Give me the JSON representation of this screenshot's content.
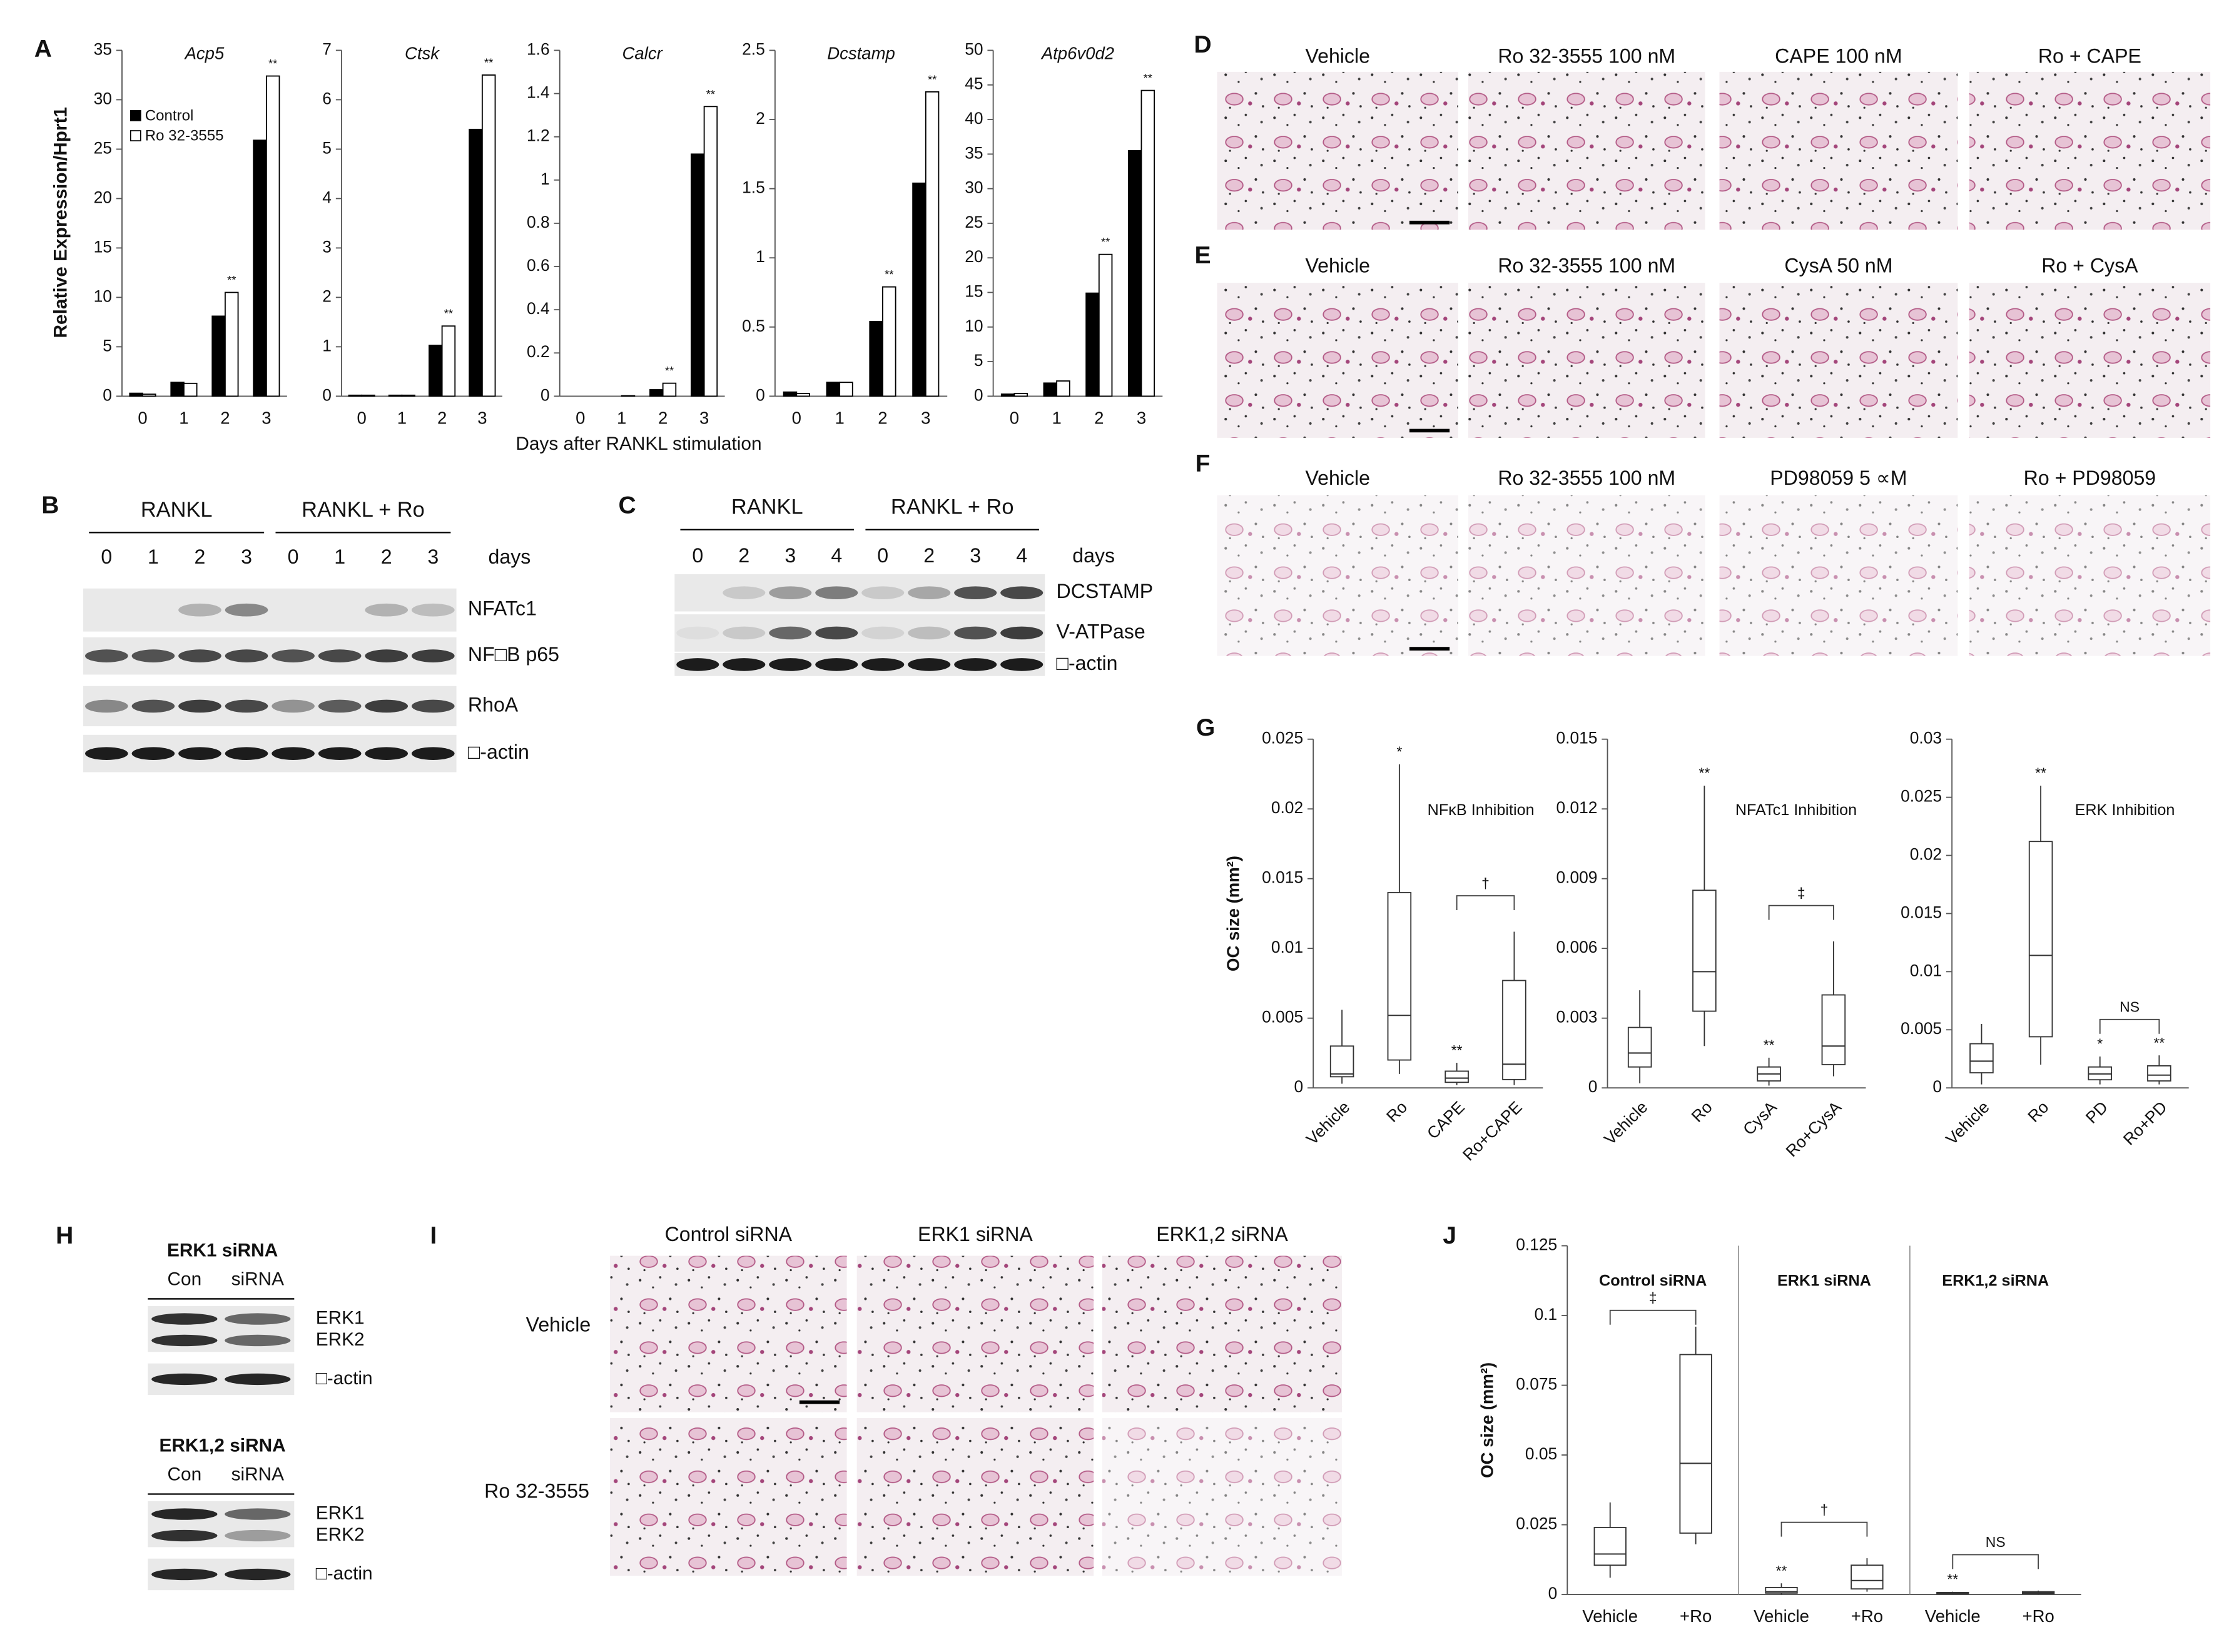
{
  "chart_data": [
    {
      "type": "bar",
      "title": "Acp5",
      "categories": [
        "0",
        "1",
        "2",
        "3"
      ],
      "series": [
        {
          "name": "Control",
          "color": "#000000",
          "values": [
            0.3,
            1.4,
            8.1,
            25.9
          ]
        },
        {
          "name": "Ro 32-3555",
          "color": "#ffffff",
          "values": [
            0.2,
            1.3,
            10.5,
            32.4
          ],
          "sig_labels": [
            null,
            null,
            "**",
            "**"
          ]
        }
      ],
      "ylim": [
        0,
        35
      ],
      "yticks": [
        0,
        5,
        10,
        15,
        20,
        25,
        30,
        35
      ]
    },
    {
      "type": "bar",
      "title": "Ctsk",
      "categories": [
        "0",
        "1",
        "2",
        "3"
      ],
      "series": [
        {
          "color": "#000000",
          "values": [
            0.02,
            0.02,
            1.03,
            5.4
          ]
        },
        {
          "color": "#ffffff",
          "values": [
            0.02,
            0.02,
            1.42,
            6.5
          ],
          "sig_labels": [
            null,
            null,
            "**",
            "**"
          ]
        }
      ],
      "ylim": [
        0,
        7
      ],
      "yticks": [
        0,
        1,
        2,
        3,
        4,
        5,
        6,
        7
      ]
    },
    {
      "type": "bar",
      "title": "Calcr",
      "categories": [
        "0",
        "1",
        "2",
        "3"
      ],
      "series": [
        {
          "color": "#000000",
          "values": [
            0,
            0,
            0.03,
            1.12
          ]
        },
        {
          "color": "#ffffff",
          "values": [
            0,
            0.002,
            0.06,
            1.34
          ],
          "sig_labels": [
            null,
            null,
            "**",
            "**"
          ]
        }
      ],
      "ylim": [
        0,
        1.6
      ],
      "yticks": [
        0,
        0.2,
        0.4,
        0.6,
        0.8,
        1,
        1.2,
        1.4,
        1.6
      ]
    },
    {
      "type": "bar",
      "title": "Dcstamp",
      "categories": [
        "0",
        "1",
        "2",
        "3"
      ],
      "series": [
        {
          "color": "#000000",
          "values": [
            0.03,
            0.1,
            0.54,
            1.54
          ]
        },
        {
          "color": "#ffffff",
          "values": [
            0.02,
            0.1,
            0.79,
            2.2
          ],
          "sig_labels": [
            null,
            null,
            "**",
            "**"
          ]
        }
      ],
      "ylim": [
        0,
        2.5
      ],
      "yticks": [
        0,
        0.5,
        1,
        1.5,
        2,
        2.5
      ]
    },
    {
      "type": "bar",
      "title": "Atp6v0d2",
      "categories": [
        "0",
        "1",
        "2",
        "3"
      ],
      "series": [
        {
          "color": "#000000",
          "values": [
            0.3,
            1.9,
            14.9,
            35.5
          ]
        },
        {
          "color": "#ffffff",
          "values": [
            0.4,
            2.2,
            20.5,
            44.2
          ],
          "sig_labels": [
            null,
            null,
            "**",
            "**"
          ]
        }
      ],
      "ylim": [
        0,
        50
      ],
      "yticks": [
        0,
        5,
        10,
        15,
        20,
        25,
        30,
        35,
        40,
        45,
        50
      ]
    },
    {
      "type": "box",
      "title": "NFκB Inhibition",
      "ylabel": "OC size (mm²)",
      "categories": [
        "Vehicle",
        "Ro",
        "CAPE",
        "Ro+CAPE"
      ],
      "series": [
        {
          "color": "#ffffff",
          "min": [
            0.0003,
            0.001,
            0.0002,
            0.0002
          ],
          "q1": [
            0.0008,
            0.002,
            0.0004,
            0.0006
          ],
          "median": [
            0.001,
            0.0052,
            0.0007,
            0.0017
          ],
          "q3": [
            0.003,
            0.014,
            0.0012,
            0.0077
          ],
          "max": [
            0.0056,
            0.0232,
            0.0018,
            0.0112
          ],
          "sig_labels": [
            null,
            "*",
            "**",
            null
          ]
        }
      ],
      "bracket_labels": [
        "†"
      ],
      "ylim": [
        0,
        0.025
      ],
      "yticks": [
        0,
        0.005,
        0.01,
        0.015,
        0.02,
        0.025
      ]
    },
    {
      "type": "box",
      "title": "NFATc1 Inhibition",
      "categories": [
        "Vehicle",
        "Ro",
        "CysA",
        "Ro+CysA"
      ],
      "series": [
        {
          "color": "#ffffff",
          "min": [
            0.0002,
            0.0018,
            0.0001,
            0.0005
          ],
          "q1": [
            0.0009,
            0.0033,
            0.0003,
            0.001
          ],
          "median": [
            0.0015,
            0.005,
            0.0006,
            0.0018
          ],
          "q3": [
            0.0026,
            0.0085,
            0.0009,
            0.004
          ],
          "max": [
            0.0042,
            0.013,
            0.0013,
            0.0063
          ],
          "sig_labels": [
            null,
            "**",
            "**",
            null
          ]
        }
      ],
      "bracket_labels": [
        "‡"
      ],
      "ylim": [
        0,
        0.015
      ],
      "yticks": [
        0,
        0.003,
        0.006,
        0.009,
        0.012,
        0.015
      ]
    },
    {
      "type": "box",
      "title": "ERK Inhibition",
      "categories": [
        "Vehicle",
        "Ro",
        "PD",
        "Ro+PD"
      ],
      "series": [
        {
          "color": "#ffffff",
          "min": [
            0.0003,
            0.002,
            0.0003,
            0.0003
          ],
          "q1": [
            0.0013,
            0.0044,
            0.0007,
            0.0006
          ],
          "median": [
            0.0023,
            0.0114,
            0.0012,
            0.0011
          ],
          "q3": [
            0.0038,
            0.0212,
            0.0018,
            0.0019
          ],
          "max": [
            0.0055,
            0.026,
            0.0027,
            0.0028
          ],
          "sig_labels": [
            null,
            "**",
            "*",
            "**"
          ]
        }
      ],
      "bracket_labels": [
        "NS"
      ],
      "ylim": [
        0,
        0.03
      ],
      "yticks": [
        0,
        0.005,
        0.01,
        0.015,
        0.02,
        0.025,
        0.03
      ]
    },
    {
      "type": "box",
      "ylabel": "OC size (mm²)",
      "groups": [
        "Control siRNA",
        "ERK1 siRNA",
        "ERK1,2 siRNA"
      ],
      "categories": [
        "Vehicle",
        "+Ro",
        "Vehicle",
        "+Ro",
        "Vehicle",
        "+Ro"
      ],
      "series": [
        {
          "color": "#ffffff",
          "min": [
            0.006,
            0.018,
            0,
            0.001,
            0,
            0
          ],
          "q1": [
            0.0105,
            0.022,
            0.0005,
            0.002,
            0.0002,
            0.0003
          ],
          "median": [
            0.0145,
            0.047,
            0.001,
            0.005,
            0.0004,
            0.0006
          ],
          "q3": [
            0.024,
            0.086,
            0.0025,
            0.0105,
            0.0007,
            0.001
          ],
          "max": [
            0.033,
            0.096,
            0.004,
            0.013,
            0.001,
            0.0014
          ],
          "sig_labels": [
            null,
            null,
            "**",
            null,
            "**",
            null
          ]
        }
      ],
      "bracket_labels": [
        "‡",
        "†",
        "NS"
      ],
      "ylim": [
        0,
        0.125
      ],
      "yticks": [
        0,
        0.025,
        0.05,
        0.075,
        0.1,
        0.125
      ]
    }
  ],
  "figure": {
    "panel_labels": [
      "A",
      "B",
      "C",
      "D",
      "E",
      "F",
      "G",
      "H",
      "I",
      "J"
    ],
    "panel_a": {
      "ylabel": "Relative Expression/Hprt1",
      "xlabel": "Days after RANKL stimulation"
    },
    "panel_b": {
      "groups": [
        "RANKL",
        "RANKL + Ro"
      ],
      "lanes": [
        0,
        1,
        2,
        3,
        0,
        1,
        2,
        3
      ],
      "lane_unit": "days",
      "proteins": [
        "NFATc1",
        "NF□B p65",
        "RhoA",
        "□-actin"
      ]
    },
    "panel_c": {
      "groups": [
        "RANKL",
        "RANKL + Ro"
      ],
      "lanes": [
        0,
        2,
        3,
        4,
        0,
        2,
        3,
        4
      ],
      "lane_unit": "days",
      "proteins": [
        "DCSTAMP",
        "V-ATPase",
        "□-actin"
      ]
    },
    "panel_d": {
      "columns": [
        "Vehicle",
        "Ro 32-3555 100 nM",
        "CAPE 100 nM",
        "Ro + CAPE"
      ]
    },
    "panel_e": {
      "columns": [
        "Vehicle",
        "Ro 32-3555 100 nM",
        "CysA 50 nM",
        "Ro + CysA"
      ]
    },
    "panel_f": {
      "columns": [
        "Vehicle",
        "Ro 32-3555 100 nM",
        "PD98059 5 ∝M",
        "Ro + PD98059"
      ]
    },
    "panel_h": {
      "blots": [
        {
          "title": "ERK1 siRNA",
          "lanes": [
            "Con",
            "siRNA"
          ],
          "bands": [
            "ERK1",
            "ERK2",
            "□-actin"
          ]
        },
        {
          "title": "ERK1,2 siRNA",
          "lanes": [
            "Con",
            "siRNA"
          ],
          "bands": [
            "ERK1",
            "ERK2",
            "□-actin"
          ]
        }
      ]
    },
    "panel_i": {
      "columns": [
        "Control siRNA",
        "ERK1 siRNA",
        "ERK1,2 siRNA"
      ],
      "rows": [
        "Vehicle",
        "Ro 32-3555"
      ]
    }
  }
}
